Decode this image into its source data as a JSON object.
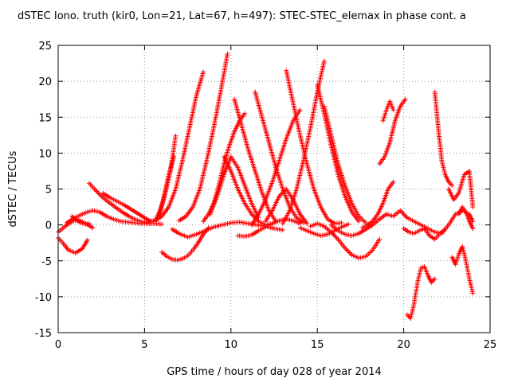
{
  "chart_data": {
    "type": "scatter",
    "title": "dSTEC Iono. truth (kir0, Lon=21, Lat=67, h=497): STEC-STEC_elemax in phase cont. a",
    "xlabel": "GPS time / hours of day 028 of year 2014",
    "ylabel": "dSTEC  / TECUs",
    "xlim": [
      0,
      25
    ],
    "ylim": [
      -15,
      25
    ],
    "xticks": [
      0,
      5,
      10,
      15,
      20,
      25
    ],
    "yticks": [
      -15,
      -10,
      -5,
      0,
      5,
      10,
      15,
      20,
      25
    ],
    "grid": true,
    "marker": "+",
    "color": "#ff0000",
    "series": [
      {
        "x": [
          0.0,
          0.3,
          0.6,
          1.0,
          1.4,
          1.7
        ],
        "y": [
          -1.8,
          -2.6,
          -3.5,
          -3.9,
          -3.3,
          -2.1
        ]
      },
      {
        "x": [
          0.0,
          0.4,
          0.8,
          1.2,
          1.6,
          2.0
        ],
        "y": [
          -1.0,
          -0.2,
          0.5,
          0.7,
          0.2,
          -0.4
        ]
      },
      {
        "x": [
          0.5,
          0.9,
          1.3,
          1.7,
          2.0,
          2.4,
          2.8,
          3.2,
          3.6,
          4.0,
          4.4,
          4.8,
          5.2,
          5.6,
          6.0
        ],
        "y": [
          0.3,
          0.9,
          1.4,
          1.8,
          2.0,
          1.8,
          1.2,
          0.8,
          0.5,
          0.4,
          0.3,
          0.2,
          0.2,
          0.2,
          0.1
        ]
      },
      {
        "x": [
          1.8,
          2.1,
          2.5,
          2.9,
          3.3,
          3.7,
          4.1,
          4.5,
          4.9,
          5.3
        ],
        "y": [
          5.8,
          5.0,
          4.0,
          3.2,
          2.5,
          1.8,
          1.2,
          0.7,
          0.4,
          0.2
        ]
      },
      {
        "x": [
          2.6,
          3.0,
          3.4,
          3.8,
          4.2,
          4.6,
          5.0,
          5.4
        ],
        "y": [
          4.4,
          3.8,
          3.3,
          2.8,
          2.2,
          1.6,
          1.0,
          0.4
        ]
      },
      {
        "x": [
          0.8,
          1.0,
          1.3,
          1.6,
          1.8
        ],
        "y": [
          1.2,
          0.8,
          0.3,
          0.1,
          0.2
        ]
      },
      {
        "x": [
          5.2,
          5.6,
          6.0,
          6.4,
          6.8,
          7.2,
          7.6,
          8.0,
          8.4
        ],
        "y": [
          0.5,
          0.6,
          1.2,
          2.5,
          5.0,
          9.0,
          13.5,
          18.0,
          21.3
        ]
      },
      {
        "x": [
          5.6,
          5.9,
          6.2,
          6.5,
          6.8
        ],
        "y": [
          0.5,
          2.0,
          4.5,
          7.5,
          12.4
        ]
      },
      {
        "x": [
          5.8,
          6.1,
          6.4,
          6.7
        ],
        "y": [
          1.0,
          3.5,
          7.0,
          9.5
        ]
      },
      {
        "x": [
          7.0,
          7.4,
          7.8,
          8.2,
          8.6,
          9.0,
          9.4,
          9.8
        ],
        "y": [
          0.6,
          1.2,
          2.5,
          5.0,
          9.0,
          13.5,
          18.5,
          23.8
        ]
      },
      {
        "x": [
          6.0,
          6.3,
          6.6,
          6.9,
          7.2,
          7.5,
          7.8,
          8.1,
          8.4,
          8.7
        ],
        "y": [
          -3.8,
          -4.4,
          -4.8,
          -4.9,
          -4.7,
          -4.3,
          -3.5,
          -2.5,
          -1.3,
          -0.4
        ]
      },
      {
        "x": [
          6.6,
          7.0,
          7.5,
          8.0,
          8.5,
          9.0,
          9.5,
          10.0,
          10.5,
          11.0,
          11.5,
          12.0,
          12.5,
          13.0
        ],
        "y": [
          -0.6,
          -1.2,
          -1.7,
          -1.3,
          -0.8,
          -0.3,
          0.0,
          0.3,
          0.4,
          0.2,
          0.0,
          -0.2,
          -0.5,
          -0.7
        ]
      },
      {
        "x": [
          8.4,
          8.7,
          9.0,
          9.3,
          9.6,
          9.9,
          10.2,
          10.5,
          10.8
        ],
        "y": [
          0.5,
          1.5,
          3.0,
          5.5,
          8.5,
          11.0,
          13.0,
          14.5,
          15.5
        ]
      },
      {
        "x": [
          8.8,
          9.2,
          9.6,
          10.0,
          10.4,
          10.8,
          11.2,
          11.6
        ],
        "y": [
          1.5,
          4.0,
          7.0,
          9.5,
          8.0,
          5.5,
          3.0,
          1.0
        ]
      },
      {
        "x": [
          9.6,
          10.0,
          10.4,
          10.8,
          11.2,
          11.6,
          12.0,
          12.4
        ],
        "y": [
          9.5,
          7.5,
          5.0,
          3.0,
          1.5,
          0.5,
          0.0,
          0.2
        ]
      },
      {
        "x": [
          10.2,
          10.6,
          11.0,
          11.4,
          11.8,
          12.2,
          12.6
        ],
        "y": [
          17.5,
          14.0,
          10.5,
          7.5,
          4.5,
          2.0,
          0.5
        ]
      },
      {
        "x": [
          10.4,
          10.8,
          11.2,
          11.6,
          12.0,
          12.4,
          12.8,
          13.2,
          13.6,
          14.0
        ],
        "y": [
          -1.5,
          -1.6,
          -1.4,
          -0.8,
          -0.3,
          0.2,
          0.6,
          0.8,
          0.6,
          0.2
        ]
      },
      {
        "x": [
          11.2,
          11.6,
          12.0,
          12.4,
          12.8,
          13.2,
          13.6,
          14.0
        ],
        "y": [
          0.0,
          1.5,
          3.5,
          6.0,
          9.0,
          12.0,
          14.5,
          16.0
        ]
      },
      {
        "x": [
          11.4,
          11.8,
          12.2,
          12.6,
          13.0,
          13.4,
          13.8,
          14.2
        ],
        "y": [
          18.5,
          15.0,
          11.5,
          8.0,
          5.0,
          2.5,
          1.0,
          0.3
        ]
      },
      {
        "x": [
          12.0,
          12.4,
          12.8,
          13.2,
          13.6,
          14.0,
          14.4
        ],
        "y": [
          0.5,
          2.0,
          4.0,
          5.0,
          3.5,
          1.5,
          0.2
        ]
      },
      {
        "x": [
          13.0,
          13.4,
          13.8,
          14.2,
          14.6,
          15.0,
          15.4
        ],
        "y": [
          0.2,
          2.0,
          5.0,
          9.0,
          13.5,
          18.5,
          22.8
        ]
      },
      {
        "x": [
          13.2,
          13.6,
          14.0,
          14.4,
          14.8,
          15.2,
          15.6,
          16.0,
          16.4
        ],
        "y": [
          21.5,
          17.0,
          12.5,
          8.5,
          5.0,
          2.5,
          0.8,
          0.2,
          0.3
        ]
      },
      {
        "x": [
          14.0,
          14.4,
          14.8,
          15.2,
          15.6,
          16.0,
          16.4,
          16.8
        ],
        "y": [
          -0.4,
          -0.8,
          -1.2,
          -1.5,
          -1.3,
          -0.8,
          -0.3,
          0.1
        ]
      },
      {
        "x": [
          15.0,
          15.4,
          15.8,
          16.2,
          16.6,
          17.0,
          17.4
        ],
        "y": [
          19.5,
          15.5,
          11.0,
          7.0,
          4.0,
          1.8,
          0.5
        ]
      },
      {
        "x": [
          15.4,
          15.8,
          16.2,
          16.6,
          17.0,
          17.4,
          17.8
        ],
        "y": [
          16.5,
          12.5,
          8.5,
          5.5,
          3.0,
          1.2,
          0.3
        ]
      },
      {
        "x": [
          14.6,
          15.0,
          15.4,
          15.8,
          16.2,
          16.6,
          17.0,
          17.4,
          17.8,
          18.2,
          18.6
        ],
        "y": [
          -0.2,
          0.2,
          -0.2,
          -1.0,
          -2.0,
          -3.2,
          -4.2,
          -4.6,
          -4.4,
          -3.5,
          -2.0
        ]
      },
      {
        "x": [
          15.8,
          16.2,
          16.6,
          17.0,
          17.4,
          17.8,
          18.2,
          18.6,
          19.0
        ],
        "y": [
          0.0,
          -0.8,
          -1.3,
          -1.5,
          -1.2,
          -0.6,
          0.0,
          0.8,
          1.5
        ]
      },
      {
        "x": [
          17.6,
          17.9,
          18.2,
          18.5,
          18.8,
          19.1,
          19.4
        ],
        "y": [
          -0.4,
          0.0,
          0.5,
          1.5,
          3.0,
          5.0,
          6.0
        ]
      },
      {
        "x": [
          18.6,
          18.9,
          19.2,
          19.5,
          19.8,
          20.1
        ],
        "y": [
          8.5,
          9.5,
          11.5,
          14.5,
          16.5,
          17.5
        ]
      },
      {
        "x": [
          18.8,
          19.0,
          19.2,
          19.4
        ],
        "y": [
          14.5,
          16.0,
          17.2,
          16.0
        ]
      },
      {
        "x": [
          19.0,
          19.4,
          19.8,
          20.2,
          20.6,
          21.0,
          21.4,
          21.8,
          22.2,
          22.6,
          23.0,
          23.4,
          23.8,
          24.0
        ],
        "y": [
          1.5,
          1.2,
          2.0,
          1.0,
          0.5,
          0.0,
          -0.5,
          -1.0,
          -1.2,
          0.0,
          1.5,
          2.0,
          1.5,
          0.5
        ]
      },
      {
        "x": [
          20.0,
          20.3,
          20.6,
          20.9,
          21.2,
          21.5,
          21.8,
          22.1,
          22.4
        ],
        "y": [
          -0.5,
          -1.0,
          -1.2,
          -0.8,
          -0.5,
          -1.5,
          -2.0,
          -1.2,
          -0.6
        ]
      },
      {
        "x": [
          20.2,
          20.4,
          20.6,
          20.8,
          21.0,
          21.2,
          21.4,
          21.6,
          21.8
        ],
        "y": [
          -12.5,
          -13.0,
          -11.0,
          -8.0,
          -6.0,
          -5.8,
          -7.0,
          -8.0,
          -7.5
        ]
      },
      {
        "x": [
          21.8,
          22.0,
          22.2,
          22.4,
          22.6,
          22.8
        ],
        "y": [
          18.5,
          13.5,
          9.0,
          7.0,
          6.0,
          5.5
        ]
      },
      {
        "x": [
          22.6,
          22.9,
          23.2,
          23.5,
          23.8,
          24.0
        ],
        "y": [
          5.0,
          3.5,
          4.5,
          7.0,
          7.5,
          2.5
        ]
      },
      {
        "x": [
          22.8,
          23.0,
          23.2,
          23.4,
          23.6,
          23.8,
          24.0
        ],
        "y": [
          -4.5,
          -5.5,
          -4.0,
          -3.0,
          -5.0,
          -7.5,
          -9.5
        ]
      },
      {
        "x": [
          23.2,
          23.4,
          23.6,
          23.8,
          24.0
        ],
        "y": [
          1.5,
          2.5,
          1.8,
          0.5,
          -0.5
        ]
      }
    ]
  }
}
